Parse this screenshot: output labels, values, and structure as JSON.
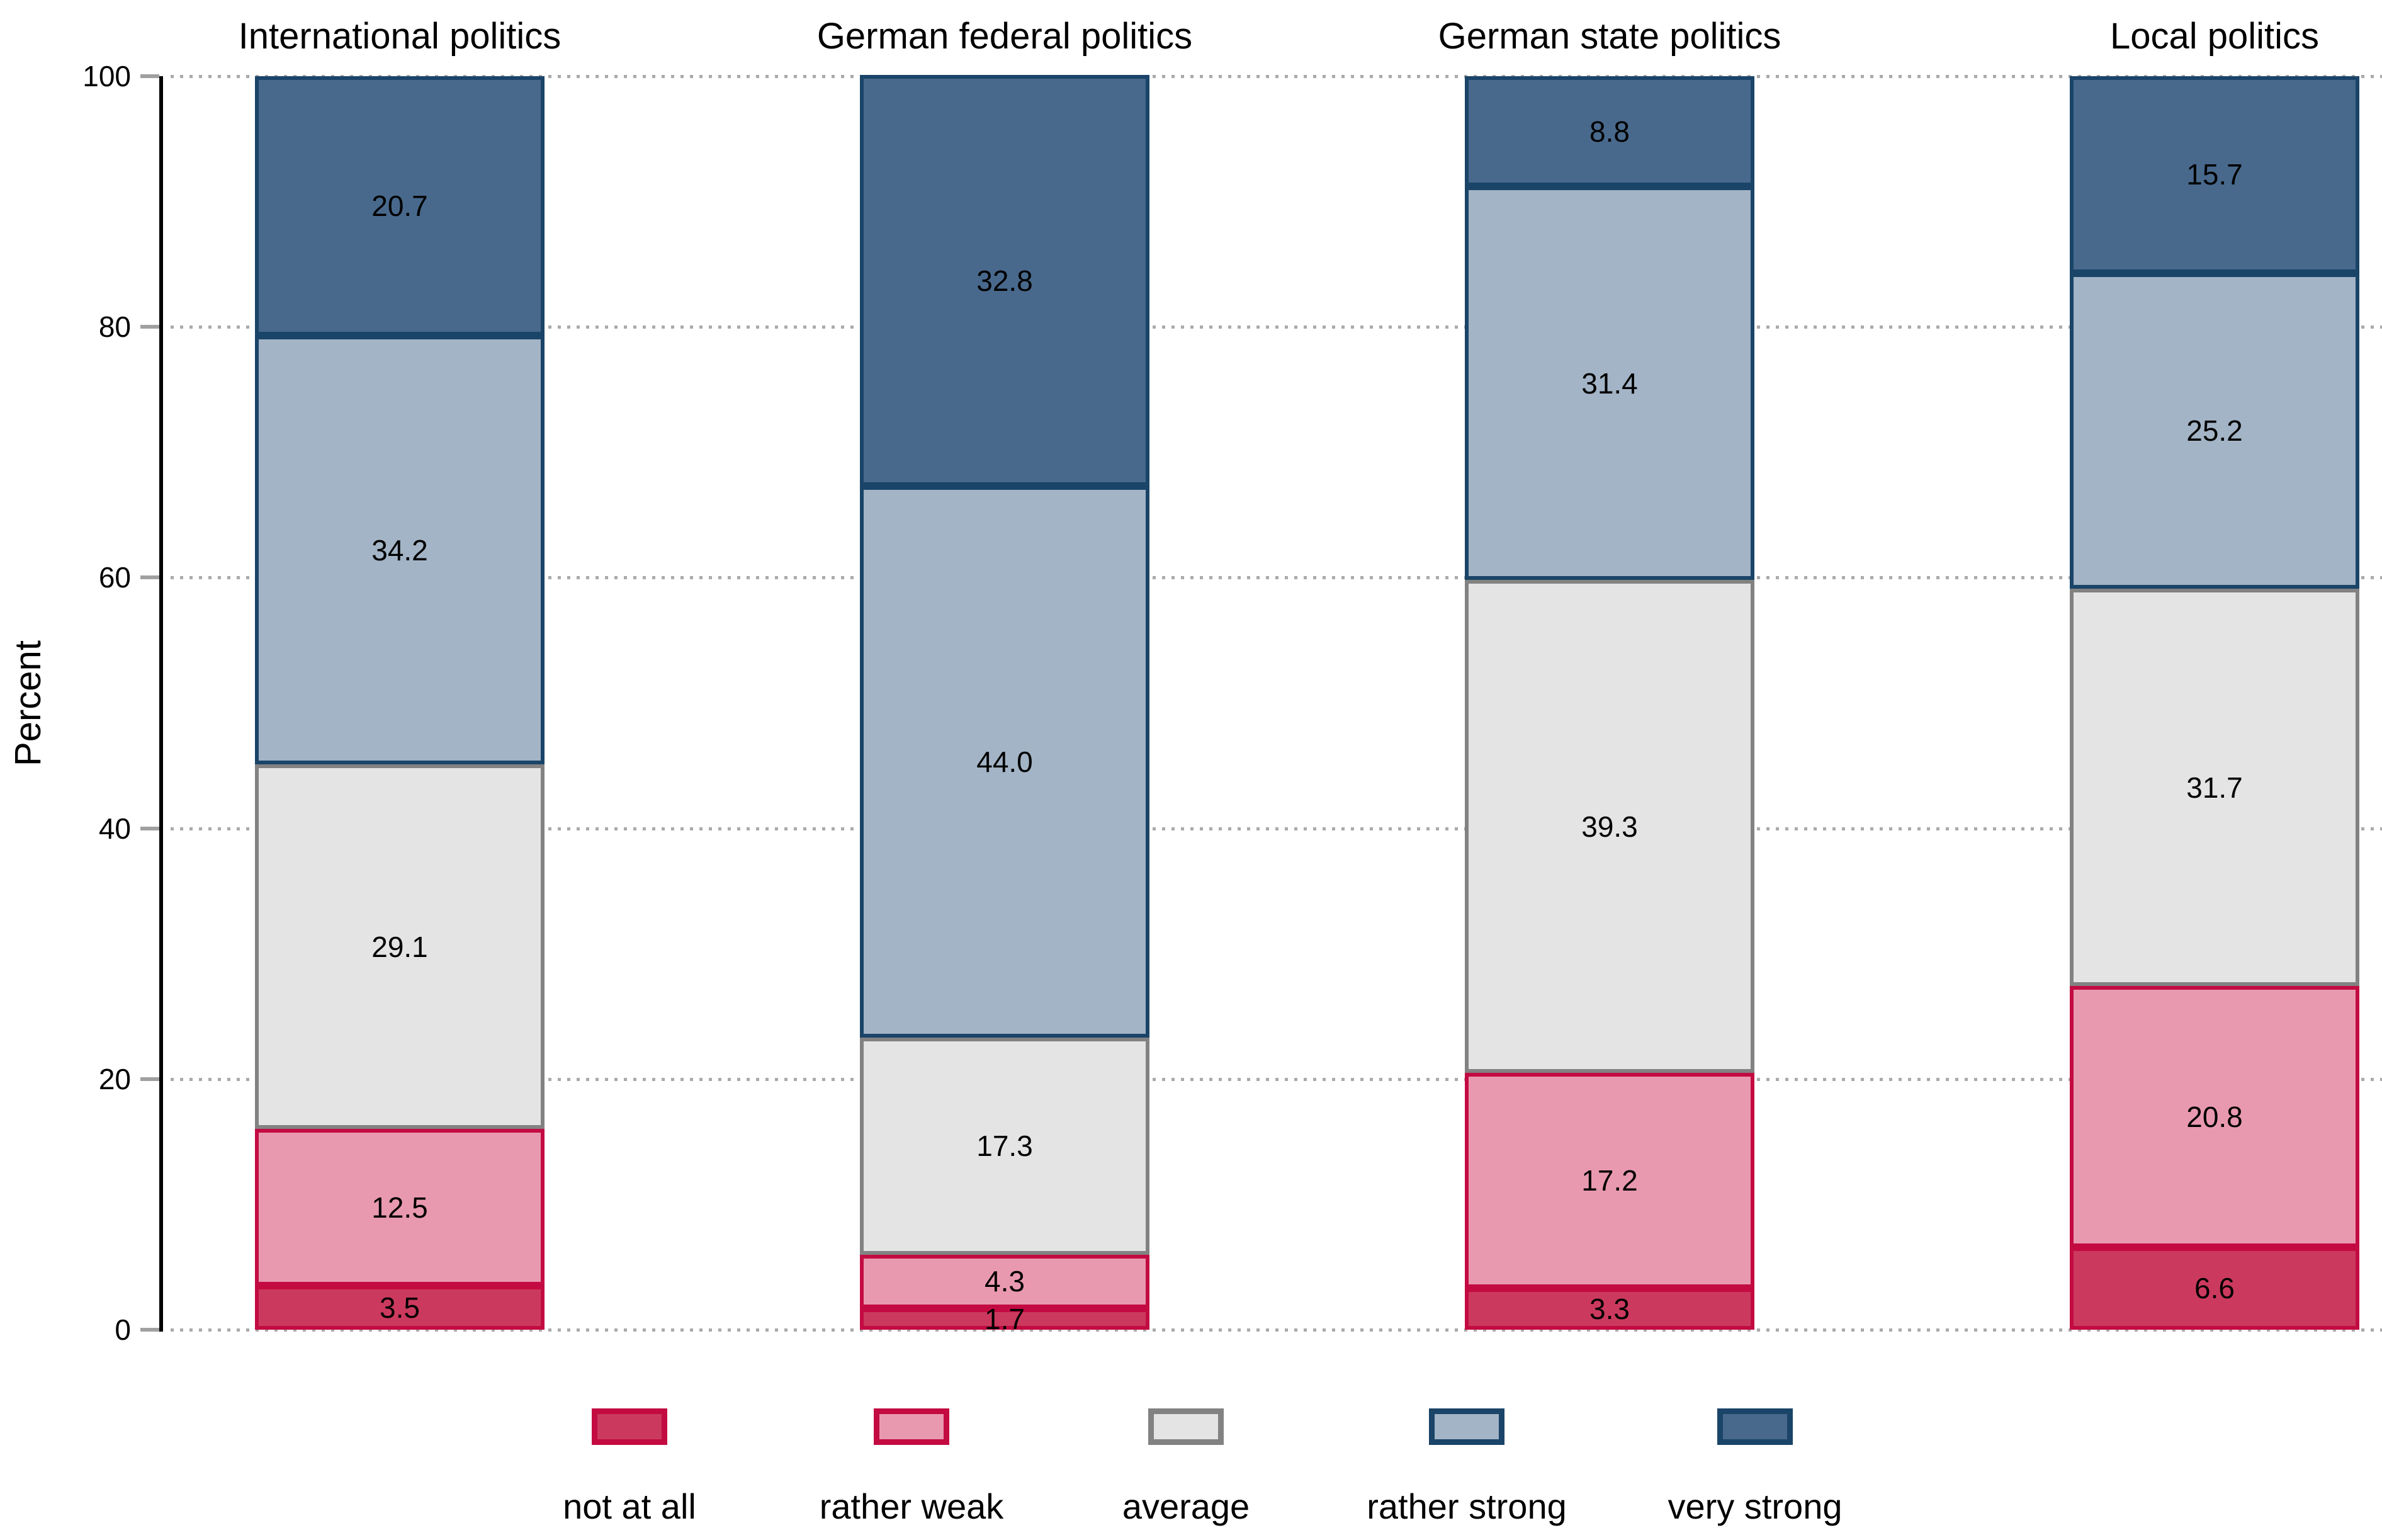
{
  "chart_data": {
    "type": "bar",
    "subtype": "stacked-100-percent",
    "panels": [
      "International politics",
      "German federal politics",
      "German state politics",
      "Local politics"
    ],
    "series": [
      {
        "name": "not at all",
        "fill": "#cb3a5e",
        "border": "#c30b42",
        "values": [
          3.5,
          1.7,
          3.3,
          6.6
        ]
      },
      {
        "name": "rather weak",
        "fill": "#e899b0",
        "border": "#c30b42",
        "values": [
          12.5,
          4.3,
          17.2,
          20.8
        ]
      },
      {
        "name": "average",
        "fill": "#e4e4e4",
        "border": "#828282",
        "values": [
          29.1,
          17.3,
          39.3,
          31.7
        ]
      },
      {
        "name": "rather strong",
        "fill": "#a3b4c6",
        "border": "#1a4468",
        "values": [
          34.2,
          44.0,
          31.4,
          25.2
        ]
      },
      {
        "name": "very strong",
        "fill": "#48698c",
        "border": "#1a4468",
        "values": [
          20.7,
          32.8,
          8.8,
          15.7
        ]
      }
    ],
    "ylabel": "Percent",
    "yticks": [
      0,
      20,
      40,
      60,
      80,
      100
    ],
    "ylim": [
      0,
      100
    ],
    "grid": "dotted-horizontal",
    "legend_position": "bottom",
    "colors": {
      "axis": "#000000",
      "gridline": "#aaaaaa",
      "tick": "#a0a0a0",
      "text": "#000000",
      "background": "#ffffff"
    }
  }
}
